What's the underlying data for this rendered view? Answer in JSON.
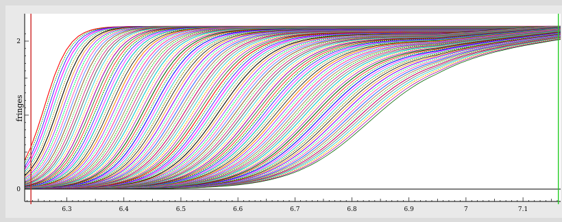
{
  "window": {
    "background": "#e9e9e9",
    "plot_background": "#ffffff"
  },
  "cursors": {
    "left_color": "#cc2222",
    "right_color": "#22cc22"
  },
  "chart_data": {
    "type": "line",
    "title": "",
    "xlabel": "",
    "ylabel": "fringes",
    "xlim": [
      6.226,
      7.166
    ],
    "ylim": [
      0,
      2.2
    ],
    "x_ticks": [
      6.3,
      6.4,
      6.5,
      6.6,
      6.7,
      6.8,
      6.9,
      7.0,
      7.1
    ],
    "x_tick_labels": [
      "6.3",
      "6.4",
      "6.5",
      "6.6",
      "6.7",
      "6.8",
      "6.9",
      "7",
      "7.1"
    ],
    "y_ticks": [
      0,
      2
    ],
    "y_tick_labels": [
      "0",
      "2"
    ],
    "grid": false,
    "legend": "none",
    "curve_family": {
      "count": 120,
      "shape": "sigmoid rising from 0 to ~2.2",
      "midpoint_range": [
        6.26,
        6.83
      ],
      "final_level_range": [
        2.2,
        1.82
      ],
      "palette": [
        "#ff0000",
        "#00aa00",
        "#0000ff",
        "#ff00ff",
        "#00bbbb",
        "#999900",
        "#000000",
        "#ff8800",
        "#8800ff",
        "#00ff66",
        "#ff3399",
        "#3366ff",
        "#996633",
        "#33cc33",
        "#cc0066",
        "#666666",
        "#00cccc",
        "#ffaa00",
        "#aa00aa",
        "#006600"
      ]
    },
    "cursors_x": [
      6.237,
      7.162
    ]
  }
}
